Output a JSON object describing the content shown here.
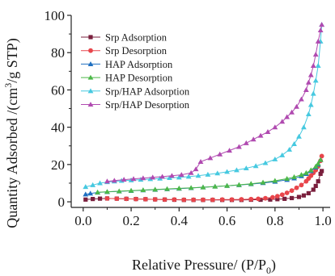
{
  "chart_data": {
    "type": "line",
    "title": "",
    "xlabel": "Relative Pressure/ (P/P",
    "xlabel_sub": "0",
    "xlabel_close": ")",
    "ylabel_pre": "Quantity Adsorbed /(cm",
    "ylabel_sup": "3",
    "ylabel_post": "/g STP)",
    "xlim": [
      -0.05,
      1.03
    ],
    "ylim": [
      -3,
      100
    ],
    "x_ticks": [
      "0.0",
      "0.2",
      "0.4",
      "0.6",
      "0.8",
      "1.0"
    ],
    "y_ticks": [
      "0",
      "20",
      "40",
      "60",
      "80",
      "100"
    ],
    "grid": false,
    "legend_position": "top-left",
    "series": [
      {
        "name": "Srp Adsorption",
        "color": "#7a1f3d",
        "marker": "square",
        "x": [
          0.01,
          0.04,
          0.07,
          0.1,
          0.14,
          0.18,
          0.22,
          0.26,
          0.3,
          0.34,
          0.38,
          0.42,
          0.46,
          0.5,
          0.54,
          0.58,
          0.62,
          0.66,
          0.7,
          0.74,
          0.78,
          0.81,
          0.84,
          0.87,
          0.9,
          0.92,
          0.94,
          0.96,
          0.97,
          0.98,
          0.99,
          0.995
        ],
        "y": [
          1.2,
          1.5,
          1.7,
          1.8,
          1.7,
          1.6,
          1.5,
          1.4,
          1.3,
          1.2,
          1.1,
          1.0,
          1.0,
          1.0,
          1.0,
          1.0,
          1.0,
          1.0,
          1.1,
          1.1,
          1.2,
          1.4,
          1.6,
          2.0,
          2.6,
          3.4,
          4.6,
          6.5,
          8.5,
          11.0,
          15.0,
          16.5
        ]
      },
      {
        "name": "Srp Desorption",
        "color": "#e8454b",
        "marker": "circle",
        "x": [
          0.995,
          0.99,
          0.98,
          0.97,
          0.96,
          0.95,
          0.94,
          0.93,
          0.91,
          0.89,
          0.87,
          0.85,
          0.83,
          0.81,
          0.79,
          0.76,
          0.73,
          0.7,
          0.66,
          0.62,
          0.58,
          0.54,
          0.5,
          0.46,
          0.42,
          0.38,
          0.34,
          0.3,
          0.26,
          0.22,
          0.18,
          0.14,
          0.1
        ],
        "y": [
          24.5,
          22.0,
          19.0,
          17.0,
          15.5,
          14.0,
          12.5,
          11.0,
          9.0,
          7.5,
          6.0,
          4.8,
          3.8,
          3.0,
          2.4,
          1.9,
          1.6,
          1.4,
          1.3,
          1.2,
          1.2,
          1.1,
          1.1,
          1.1,
          1.1,
          1.2,
          1.2,
          1.3,
          1.4,
          1.5,
          1.6,
          1.7,
          1.8
        ]
      },
      {
        "name": "HAP Adsorption",
        "color": "#1f6fc0",
        "marker": "triangle",
        "x": [
          0.01,
          0.03,
          0.06,
          0.1,
          0.15,
          0.2,
          0.25,
          0.3,
          0.35,
          0.4,
          0.45,
          0.5,
          0.55,
          0.6,
          0.65,
          0.7,
          0.75,
          0.8,
          0.85,
          0.88,
          0.91,
          0.93,
          0.95,
          0.97,
          0.98,
          0.99
        ],
        "y": [
          4.0,
          4.5,
          5.0,
          5.3,
          5.6,
          5.9,
          6.2,
          6.5,
          6.8,
          7.1,
          7.4,
          7.8,
          8.2,
          8.6,
          9.0,
          9.5,
          10.1,
          10.8,
          11.8,
          12.6,
          13.8,
          15.0,
          16.5,
          18.5,
          20.0,
          22.5
        ]
      },
      {
        "name": "HAP Desorption",
        "color": "#4cb848",
        "marker": "triangle",
        "x": [
          0.99,
          0.98,
          0.97,
          0.95,
          0.93,
          0.91,
          0.88,
          0.85,
          0.8,
          0.75,
          0.7,
          0.65,
          0.6,
          0.55,
          0.5,
          0.45,
          0.4,
          0.35,
          0.3,
          0.25,
          0.2,
          0.15,
          0.1,
          0.06
        ],
        "y": [
          22.5,
          20.5,
          19.0,
          17.0,
          15.5,
          14.5,
          13.3,
          12.4,
          11.3,
          10.4,
          9.7,
          9.1,
          8.6,
          8.2,
          7.8,
          7.5,
          7.2,
          6.9,
          6.6,
          6.3,
          6.0,
          5.7,
          5.4,
          5.1
        ]
      },
      {
        "name": "Srp/HAP Adsorption",
        "color": "#46c9e0",
        "marker": "triangle",
        "x": [
          0.01,
          0.04,
          0.07,
          0.1,
          0.13,
          0.16,
          0.2,
          0.24,
          0.28,
          0.32,
          0.36,
          0.4,
          0.44,
          0.48,
          0.52,
          0.56,
          0.6,
          0.64,
          0.68,
          0.72,
          0.76,
          0.8,
          0.83,
          0.86,
          0.88,
          0.9,
          0.92,
          0.94,
          0.95,
          0.96,
          0.97,
          0.98,
          0.99,
          0.995
        ],
        "y": [
          8.0,
          9.0,
          10.0,
          10.6,
          11.0,
          11.3,
          11.6,
          11.9,
          12.2,
          12.5,
          12.8,
          13.1,
          13.5,
          14.0,
          14.6,
          15.3,
          16.1,
          17.0,
          18.0,
          19.2,
          20.8,
          22.8,
          25.0,
          28.0,
          31.0,
          35.0,
          40.0,
          47.0,
          52.0,
          58.0,
          65.0,
          73.0,
          86.0,
          95.0
        ]
      },
      {
        "name": "Srp/HAP Desorption",
        "color": "#b04ab0",
        "marker": "triangle",
        "x": [
          0.995,
          0.99,
          0.98,
          0.97,
          0.96,
          0.95,
          0.94,
          0.93,
          0.91,
          0.89,
          0.87,
          0.85,
          0.83,
          0.8,
          0.77,
          0.74,
          0.71,
          0.68,
          0.65,
          0.61,
          0.57,
          0.53,
          0.49,
          0.47,
          0.45,
          0.41,
          0.37,
          0.33,
          0.29,
          0.25,
          0.21,
          0.17,
          0.13,
          0.1
        ],
        "y": [
          95.0,
          92.0,
          86.0,
          79.0,
          73.0,
          68.0,
          64.0,
          60.0,
          55.0,
          51.0,
          48.0,
          45.5,
          43.0,
          40.0,
          37.5,
          35.5,
          33.5,
          31.5,
          29.5,
          27.5,
          25.5,
          23.5,
          21.5,
          17.5,
          15.5,
          14.5,
          14.0,
          13.5,
          13.1,
          12.7,
          12.3,
          11.9,
          11.4,
          11.0
        ]
      }
    ]
  }
}
